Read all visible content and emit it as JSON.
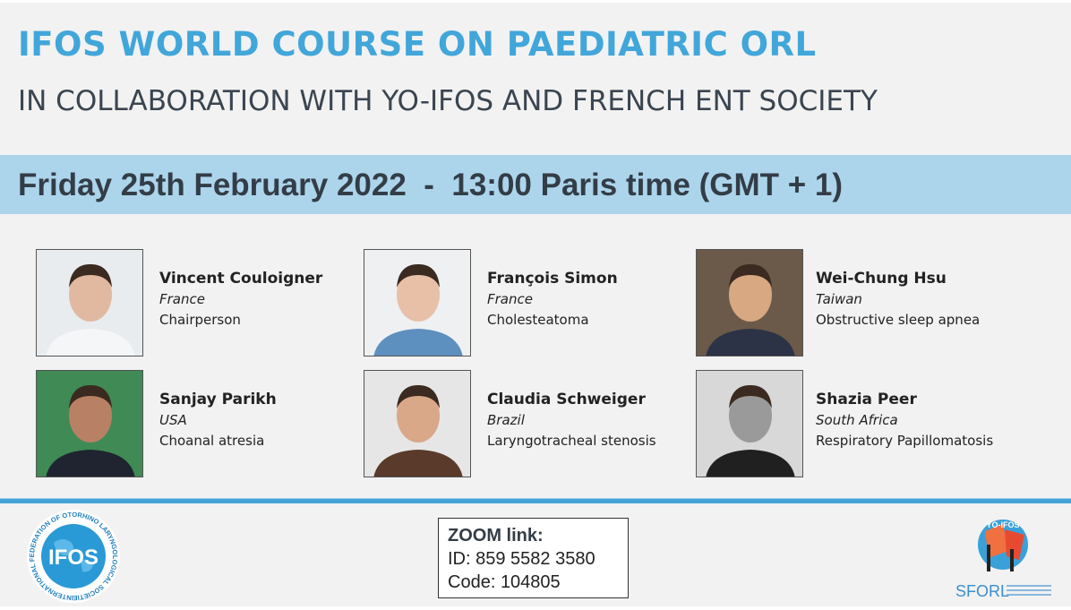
{
  "title": "IFOS WORLD COURSE ON PAEDIATRIC ORL",
  "subtitle": "IN COLLABORATION WITH YO-IFOS AND FRENCH ENT SOCIETY",
  "date_line": "Friday 25th February 2022  -  13:00 Paris time (GMT + 1)",
  "speakers": [
    {
      "name": "Vincent Couloigner",
      "country": "France",
      "topic": "Chairperson",
      "bg": "#e9ecef",
      "skin": "#e0b9a0",
      "shirt": "#f4f6f8"
    },
    {
      "name": "François Simon",
      "country": "France",
      "topic": "Cholesteatoma",
      "bg": "#eef0f2",
      "skin": "#e8c0a8",
      "shirt": "#5d8fbf"
    },
    {
      "name": "Wei-Chung Hsu",
      "country": "Taiwan",
      "topic": "Obstructive sleep apnea",
      "bg": "#6b5a4a",
      "skin": "#d8a882",
      "shirt": "#2c3346"
    },
    {
      "name": "Sanjay Parikh",
      "country": "USA",
      "topic": "Choanal atresia",
      "bg": "#3f8a55",
      "skin": "#b88064",
      "shirt": "#1f2430"
    },
    {
      "name": "Claudia Schweiger",
      "country": "Brazil",
      "topic": "Laryngotracheal stenosis",
      "bg": "#e6e6e6",
      "skin": "#d9a888",
      "shirt": "#5a3a2a"
    },
    {
      "name": "Shazia Peer",
      "country": "South Africa",
      "topic": "Respiratory Papillomatosis",
      "bg": "#d8d8d8",
      "skin": "#9a9a9a",
      "shirt": "#202020"
    }
  ],
  "zoom": {
    "heading": "ZOOM link:",
    "id_label": "ID:",
    "id": "859 5582 3580",
    "code_label": "Code:",
    "code": "104805"
  },
  "logos": {
    "left": "IFOS",
    "left_ring": "INTERNATIONAL FEDERATION OF OTORHINO LARYNGOLOGICAL SOCIETIES",
    "right_top": "YO-IFOS",
    "right_bottom": "SFORL"
  },
  "colors": {
    "accent": "#41a6d9",
    "banner": "#acd5ec",
    "text": "#333d47"
  }
}
